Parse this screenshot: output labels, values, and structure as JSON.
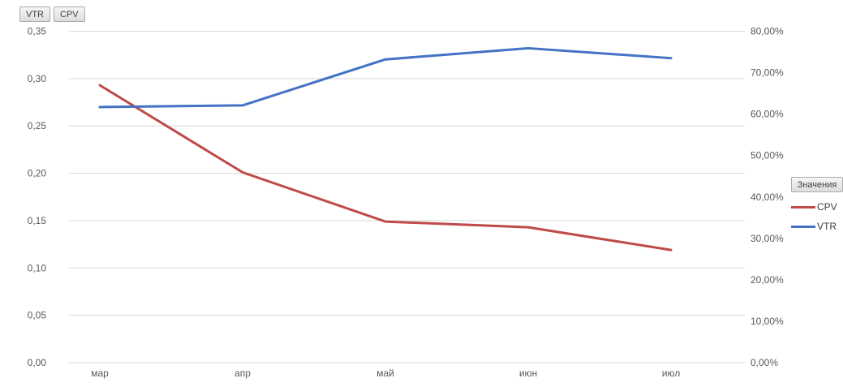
{
  "field_buttons": [
    {
      "label": "VTR"
    },
    {
      "label": "CPV"
    }
  ],
  "legend": {
    "title": "Значения",
    "entries": [
      {
        "label": "CPV",
        "color": "#be4b48"
      },
      {
        "label": "VTR",
        "color": "#4472c4"
      }
    ]
  },
  "chart_data": {
    "type": "line",
    "title": "",
    "xlabel": "",
    "ylabel": "",
    "grid": true,
    "legend_position": "right",
    "categories": [
      "мар",
      "апр",
      "май",
      "июн",
      "июл"
    ],
    "series": [
      {
        "name": "CPV",
        "axis": "left",
        "color": "#be4b48",
        "values": [
          0.293,
          0.201,
          0.149,
          0.143,
          0.119
        ]
      },
      {
        "name": "VTR",
        "axis": "right",
        "color": "#4472c4",
        "values": [
          0.617,
          0.621,
          0.732,
          0.759,
          0.735
        ]
      }
    ],
    "left_axis": {
      "min": 0,
      "max": 0.35,
      "ticks": [
        "0,35",
        "0,30",
        "0,25",
        "0,20",
        "0,15",
        "0,10",
        "0,05",
        "0,00"
      ]
    },
    "right_axis": {
      "min": 0,
      "max": 0.8,
      "ticks": [
        "80,00%",
        "70,00%",
        "60,00%",
        "50,00%",
        "40,00%",
        "30,00%",
        "20,00%",
        "10,00%",
        "0,00%"
      ]
    },
    "axis_text_color": "#595959",
    "gridline_color": "#d9d9d9"
  }
}
